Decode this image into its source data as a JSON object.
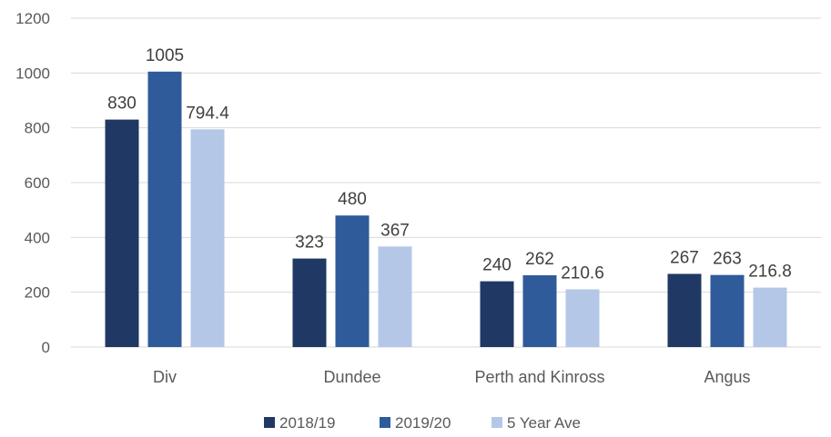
{
  "chart_data": {
    "type": "bar",
    "title": "",
    "xlabel": "",
    "ylabel": "",
    "categories": [
      "Div",
      "Dundee",
      "Perth and Kinross",
      "Angus"
    ],
    "series": [
      {
        "name": "2018/19",
        "values": [
          830,
          323,
          240,
          267
        ],
        "labels": [
          "830",
          "323",
          "240",
          "267"
        ],
        "color": "#203864"
      },
      {
        "name": "2019/20",
        "values": [
          1005,
          480,
          262,
          263
        ],
        "labels": [
          "1005",
          "480",
          "262",
          "263"
        ],
        "color": "#2F5B9A"
      },
      {
        "name": "5 Year Ave",
        "values": [
          794.4,
          367,
          210.6,
          216.8
        ],
        "labels": [
          "794.4",
          "367",
          "210.6",
          "216.8"
        ],
        "color": "#B4C7E7"
      }
    ],
    "ylim": [
      0,
      1200
    ],
    "yticks": [
      0,
      200,
      400,
      600,
      800,
      1000,
      1200
    ],
    "ytick_labels": [
      "0",
      "200",
      "400",
      "600",
      "800",
      "1000",
      "1200"
    ],
    "grid": true,
    "legend_position": "bottom"
  },
  "colors": {
    "grid": "#D9D9D9",
    "text": "#595959"
  }
}
